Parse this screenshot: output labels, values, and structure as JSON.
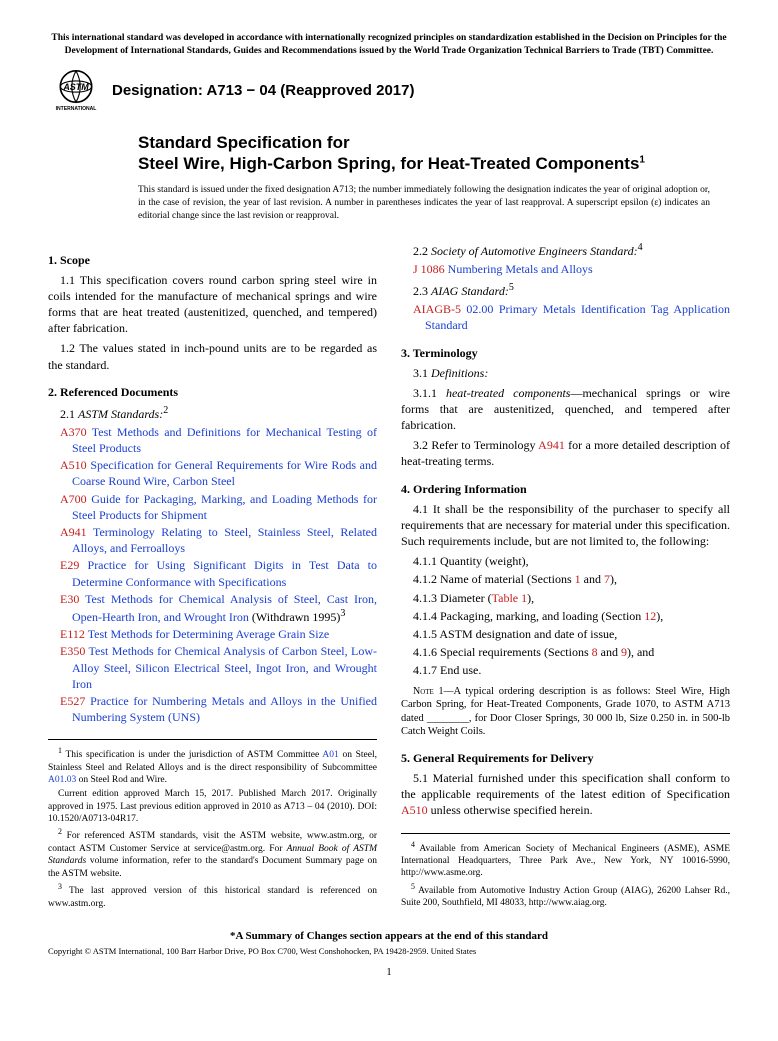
{
  "top_note": "This international standard was developed in accordance with internationally recognized principles on standardization established in the Decision on Principles for the Development of International Standards, Guides and Recommendations issued by the World Trade Organization Technical Barriers to Trade (TBT) Committee.",
  "designation": "Designation: A713 − 04 (Reapproved 2017)",
  "logo_text_top": "ASTM",
  "logo_text_bottom": "INTERNATIONAL",
  "title_line1": "Standard Specification for",
  "title_line2": "Steel Wire, High-Carbon Spring, for Heat-Treated Components",
  "title_sup": "1",
  "issuance": "This standard is issued under the fixed designation A713; the number immediately following the designation indicates the year of original adoption or, in the case of revision, the year of last revision. A number in parentheses indicates the year of last reapproval. A superscript epsilon (ε) indicates an editorial change since the last revision or reapproval.",
  "sec1_head": "1. Scope",
  "sec1_1": "1.1 This specification covers round carbon spring steel wire in coils intended for the manufacture of mechanical springs and wire forms that are heat treated (austenitized, quenched, and tempered) after fabrication.",
  "sec1_2": "1.2 The values stated in inch-pound units are to be regarded as the standard.",
  "sec2_head": "2. Referenced Documents",
  "sec2_1_label": "2.1 ",
  "sec2_1_title": "ASTM Standards:",
  "sec2_1_sup": "2",
  "astm_refs": [
    {
      "code": "A370",
      "title": "Test Methods and Definitions for Mechanical Testing of Steel Products"
    },
    {
      "code": "A510",
      "title": "Specification for General Requirements for Wire Rods and Coarse Round Wire, Carbon Steel"
    },
    {
      "code": "A700",
      "title": "Guide for Packaging, Marking, and Loading Methods for Steel Products for Shipment"
    },
    {
      "code": "A941",
      "title": "Terminology Relating to Steel, Stainless Steel, Related Alloys, and Ferroalloys"
    },
    {
      "code": "E29",
      "title": "Practice for Using Significant Digits in Test Data to Determine Conformance with Specifications"
    },
    {
      "code": "E30",
      "title": "Test Methods for Chemical Analysis of Steel, Cast Iron, Open-Hearth Iron, and Wrought Iron",
      "suffix": " (Withdrawn 1995)",
      "sup": "3"
    },
    {
      "code": "E112",
      "title": "Test Methods for Determining Average Grain Size"
    },
    {
      "code": "E350",
      "title": "Test Methods for Chemical Analysis of Carbon Steel, Low-Alloy Steel, Silicon Electrical Steel, Ingot Iron, and Wrought Iron"
    },
    {
      "code": "E527",
      "title": "Practice for Numbering Metals and Alloys in the Unified Numbering System (UNS)"
    }
  ],
  "sec2_2_label": "2.2 ",
  "sec2_2_title": "Society of Automotive Engineers Standard:",
  "sec2_2_sup": "4",
  "sae_ref_code": "J 1086",
  "sae_ref_title": "Numbering Metals and Alloys",
  "sec2_3_label": "2.3 ",
  "sec2_3_title": "AIAG Standard:",
  "sec2_3_sup": "5",
  "aiag_ref_code": "AIAGB-5",
  "aiag_ref_title": "02.00 Primary Metals Identification Tag Application Standard",
  "sec3_head": "3. Terminology",
  "sec3_1": "3.1 ",
  "sec3_1_title": "Definitions:",
  "sec3_1_1_a": "3.1.1 ",
  "sec3_1_1_term": "heat-treated components",
  "sec3_1_1_b": "—mechanical springs or wire forms that are austenitized, quenched, and tempered after fabrication.",
  "sec3_2_a": "3.2 Refer to Terminology ",
  "sec3_2_ref": "A941",
  "sec3_2_b": " for a more detailed description of heat-treating terms.",
  "sec4_head": "4. Ordering Information",
  "sec4_1": "4.1 It shall be the responsibility of the purchaser to specify all requirements that are necessary for material under this specification. Such requirements include, but are not limited to, the following:",
  "sec4_1_1": "4.1.1 Quantity (weight),",
  "sec4_1_2_a": "4.1.2 Name of material (Sections ",
  "sec4_1_2_ref1": "1",
  "sec4_1_2_mid": " and ",
  "sec4_1_2_ref2": "7",
  "sec4_1_2_b": "),",
  "sec4_1_3_a": "4.1.3 Diameter (",
  "sec4_1_3_ref": "Table 1",
  "sec4_1_3_b": "),",
  "sec4_1_4_a": "4.1.4 Packaging, marking, and loading (Section ",
  "sec4_1_4_ref": "12",
  "sec4_1_4_b": "),",
  "sec4_1_5": "4.1.5 ASTM designation and date of issue,",
  "sec4_1_6_a": "4.1.6 Special requirements (Sections ",
  "sec4_1_6_ref1": "8",
  "sec4_1_6_mid": " and ",
  "sec4_1_6_ref2": "9",
  "sec4_1_6_b": "), and",
  "sec4_1_7": "4.1.7 End use.",
  "note1_label": "Note 1—",
  "note1_body": "A typical ordering description is as follows: Steel Wire, High Carbon Spring, for Heat-Treated Components, Grade 1070, to ASTM A713 dated ________, for Door Closer Springs, 30 000 lb, Size 0.250 in. in 500-lb Catch Weight Coils.",
  "sec5_head": "5. General Requirements for Delivery",
  "sec5_1_a": "5.1 Material furnished under this specification shall conform to the applicable requirements of the latest edition of Specification ",
  "sec5_1_ref": "A510",
  "sec5_1_b": " unless otherwise specified herein.",
  "fn1_a": " This specification is under the jurisdiction of ASTM Committee ",
  "fn1_ref1": "A01",
  "fn1_b": " on Steel, Stainless Steel and Related Alloys and is the direct responsibility of Subcommittee ",
  "fn1_ref2": "A01.03",
  "fn1_c": " on Steel Rod and Wire.",
  "fn1_para2": "Current edition approved March 15, 2017. Published March 2017. Originally approved in 1975. Last previous edition approved in 2010 as A713 – 04 (2010). DOI: 10.1520/A0713-04R17.",
  "fn2_a": " For referenced ASTM standards, visit the ASTM website, www.astm.org, or contact ASTM Customer Service at service@astm.org. For ",
  "fn2_i": "Annual Book of ASTM Standards",
  "fn2_b": " volume information, refer to the standard's Document Summary page on the ASTM website.",
  "fn3": " The last approved version of this historical standard is referenced on www.astm.org.",
  "fn4": " Available from American Society of Mechanical Engineers (ASME), ASME International Headquarters, Three Park Ave., New York, NY 10016-5990, http://www.asme.org.",
  "fn5": " Available from Automotive Industry Action Group (AIAG), 26200 Lahser Rd., Suite 200, Southfield, MI 48033, http://www.aiag.org.",
  "endnote": "*A Summary of Changes section appears at the end of this standard",
  "copyright": "Copyright © ASTM International, 100 Barr Harbor Drive, PO Box C700, West Conshohocken, PA 19428-2959. United States",
  "pagenum": "1",
  "colors": {
    "link_blue": "#1a3fd1",
    "ref_red": "#c31f1f",
    "text": "#000000",
    "bg": "#ffffff"
  }
}
